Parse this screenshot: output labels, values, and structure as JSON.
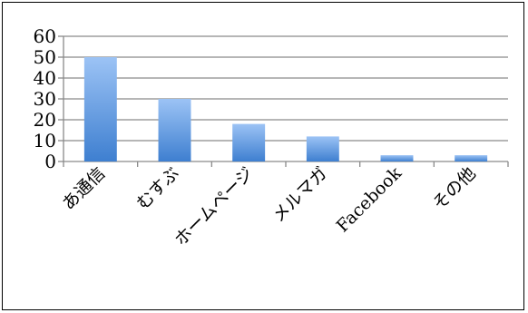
{
  "chart_data": {
    "type": "bar",
    "categories": [
      "あ通信",
      "むすぶ",
      "ホームページ",
      "メルマガ",
      "Facebook",
      "その他"
    ],
    "values": [
      50,
      30,
      18,
      12,
      3,
      3
    ],
    "title": "",
    "xlabel": "",
    "ylabel": "",
    "ylim": [
      0,
      60
    ],
    "yticks": [
      0,
      10,
      20,
      30,
      40,
      50,
      60
    ],
    "grid": true,
    "legend": "none",
    "bar_color_top": "#9cc3f5",
    "bar_color_bottom": "#3e7fd0"
  }
}
